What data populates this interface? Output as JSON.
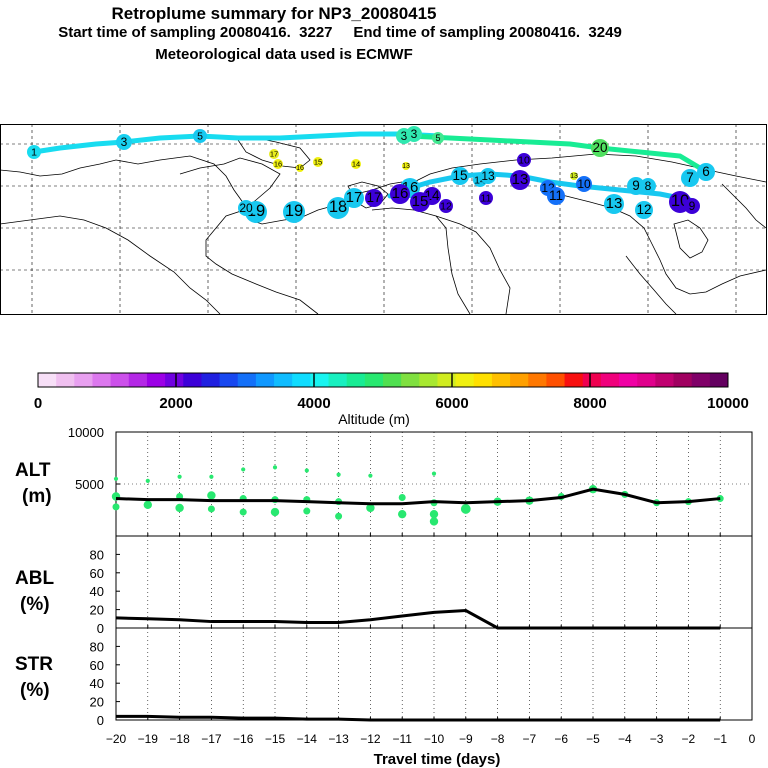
{
  "header": {
    "title": "Retroplume summary for NP3_20080415",
    "subtitle_sampling": "Start time of sampling 20080416.  3227     End time of sampling 20080416.  3249",
    "subtitle_met": "Meteorological data used is ECMWF"
  },
  "colorbar": {
    "label": "Altitude (m)",
    "ticks": [
      "0",
      "2000",
      "4000",
      "6000",
      "8000",
      "10000"
    ],
    "colors": [
      "#f7dff7",
      "#f0c0f0",
      "#e8a0f0",
      "#dc78ee",
      "#cc50ea",
      "#b428e6",
      "#9c00e6",
      "#7000e0",
      "#3c00d8",
      "#2020e0",
      "#1848f0",
      "#1470f8",
      "#1098ff",
      "#10bcff",
      "#10dcff",
      "#18f4f0",
      "#18f0c0",
      "#18ec94",
      "#28e870",
      "#50e050",
      "#80e040",
      "#a8e830",
      "#d0ec20",
      "#f0f010",
      "#ffe000",
      "#ffc000",
      "#ffa000",
      "#ff7800",
      "#ff5000",
      "#f81010",
      "#f00050",
      "#f0007c",
      "#f000a4",
      "#e0008c",
      "#c00070",
      "#a00060",
      "#800068",
      "#640060"
    ]
  },
  "map": {
    "plume_labels": [
      {
        "label": "1",
        "color": "#18dcf0"
      },
      {
        "label": "3",
        "color": "#18d0f0"
      },
      {
        "label": "5",
        "color": "#18c8f0"
      },
      {
        "label": "3",
        "color": "#30e8b0"
      },
      {
        "label": "3",
        "color": "#30e8b0"
      },
      {
        "label": "5",
        "color": "#40e890"
      },
      {
        "label": "20",
        "color": "#50e060"
      },
      {
        "label": "17",
        "color": "#e8ec20"
      },
      {
        "label": "16",
        "color": "#f0f010"
      },
      {
        "label": "16",
        "color": "#f0f010"
      },
      {
        "label": "15",
        "color": "#f0f010"
      },
      {
        "label": "14",
        "color": "#f0f010"
      },
      {
        "label": "13",
        "color": "#f0f010"
      },
      {
        "label": "13",
        "color": "#d0ec20"
      },
      {
        "label": "19",
        "color": "#18c8f0"
      },
      {
        "label": "20",
        "color": "#18c8f0"
      },
      {
        "label": "19",
        "color": "#18c8f0"
      },
      {
        "label": "18",
        "color": "#18c8f0"
      },
      {
        "label": "17",
        "color": "#18c8f0"
      },
      {
        "label": "16",
        "color": "#18c8f0"
      },
      {
        "label": "15",
        "color": "#18c8f0"
      },
      {
        "label": "14",
        "color": "#18c8f0"
      },
      {
        "label": "14",
        "color": "#3c00d8"
      },
      {
        "label": "13",
        "color": "#18c8f0"
      },
      {
        "label": "13",
        "color": "#3c00d8"
      },
      {
        "label": "12",
        "color": "#1470f8"
      },
      {
        "label": "11",
        "color": "#1470f8"
      },
      {
        "label": "10",
        "color": "#1470f8"
      },
      {
        "label": "10",
        "color": "#3c00d8"
      },
      {
        "label": "9",
        "color": "#18c8f0"
      },
      {
        "label": "8",
        "color": "#18c8f0"
      },
      {
        "label": "7",
        "color": "#18c8f0"
      },
      {
        "label": "6",
        "color": "#18c8f0"
      },
      {
        "label": "13",
        "color": "#18c8f0"
      },
      {
        "label": "12",
        "color": "#18c8f0"
      },
      {
        "label": "10",
        "color": "#3c00d8"
      },
      {
        "label": "9",
        "color": "#3c00d8"
      },
      {
        "label": "17",
        "color": "#3c00d8"
      },
      {
        "label": "16",
        "color": "#3c00d8"
      },
      {
        "label": "15",
        "color": "#3c00d8"
      },
      {
        "label": "12",
        "color": "#3c00d8"
      },
      {
        "label": "11",
        "color": "#3c00d8"
      }
    ]
  },
  "panels": {
    "alt": {
      "label_top": "ALT",
      "label_bottom": "(m)"
    },
    "abl": {
      "label_top": "ABL",
      "label_bottom": "(%)"
    },
    "str": {
      "label_top": "STR",
      "label_bottom": "(%)"
    }
  },
  "chart_data": [
    {
      "type": "line",
      "title": "ALT (m)",
      "xlabel": "Travel time (days)",
      "ylabel": "ALT (m)",
      "xlim": [
        -20,
        0
      ],
      "ylim": [
        0,
        10000
      ],
      "x_ticks": [
        -20,
        -19,
        -18,
        -17,
        -16,
        -15,
        -14,
        -13,
        -12,
        -11,
        -10,
        -9,
        -8,
        -7,
        -6,
        -5,
        -4,
        -3,
        -2,
        -1,
        0
      ],
      "y_ticks": [
        5000,
        10000
      ],
      "series": [
        {
          "name": "mean altitude",
          "x": [
            -20,
            -19,
            -18,
            -17,
            -16,
            -15,
            -14,
            -13,
            -12,
            -11,
            -10,
            -9,
            -8,
            -7,
            -6,
            -5,
            -4,
            -3,
            -2,
            -1
          ],
          "values": [
            3600,
            3500,
            3500,
            3400,
            3400,
            3400,
            3300,
            3200,
            3100,
            3100,
            3300,
            3200,
            3300,
            3400,
            3700,
            4500,
            4000,
            3200,
            3300,
            3600
          ]
        },
        {
          "name": "cluster points",
          "points": [
            {
              "x": -20,
              "y": 5500,
              "s": 3
            },
            {
              "x": -20,
              "y": 3800,
              "s": 6
            },
            {
              "x": -20,
              "y": 2800,
              "s": 5
            },
            {
              "x": -19,
              "y": 5300,
              "s": 3
            },
            {
              "x": -19,
              "y": 3000,
              "s": 6
            },
            {
              "x": -18,
              "y": 5700,
              "s": 3
            },
            {
              "x": -18,
              "y": 3800,
              "s": 5
            },
            {
              "x": -18,
              "y": 2700,
              "s": 6
            },
            {
              "x": -17,
              "y": 5700,
              "s": 3
            },
            {
              "x": -17,
              "y": 3900,
              "s": 6
            },
            {
              "x": -17,
              "y": 2600,
              "s": 5
            },
            {
              "x": -16,
              "y": 6400,
              "s": 3
            },
            {
              "x": -16,
              "y": 3600,
              "s": 5
            },
            {
              "x": -16,
              "y": 2300,
              "s": 5
            },
            {
              "x": -15,
              "y": 6600,
              "s": 3
            },
            {
              "x": -15,
              "y": 3500,
              "s": 5
            },
            {
              "x": -15,
              "y": 2300,
              "s": 6
            },
            {
              "x": -14,
              "y": 6300,
              "s": 3
            },
            {
              "x": -14,
              "y": 3500,
              "s": 5
            },
            {
              "x": -14,
              "y": 2400,
              "s": 5
            },
            {
              "x": -13,
              "y": 5900,
              "s": 3
            },
            {
              "x": -13,
              "y": 3300,
              "s": 5
            },
            {
              "x": -13,
              "y": 1900,
              "s": 5
            },
            {
              "x": -12,
              "y": 5800,
              "s": 3
            },
            {
              "x": -12,
              "y": 2700,
              "s": 6
            },
            {
              "x": -11,
              "y": 3700,
              "s": 5
            },
            {
              "x": -11,
              "y": 2100,
              "s": 6
            },
            {
              "x": -10,
              "y": 6000,
              "s": 3
            },
            {
              "x": -10,
              "y": 3200,
              "s": 5
            },
            {
              "x": -10,
              "y": 2100,
              "s": 6
            },
            {
              "x": -10,
              "y": 1400,
              "s": 6
            },
            {
              "x": -9,
              "y": 2600,
              "s": 7
            },
            {
              "x": -8,
              "y": 3300,
              "s": 6
            },
            {
              "x": -7,
              "y": 3400,
              "s": 6
            },
            {
              "x": -6,
              "y": 3800,
              "s": 5
            },
            {
              "x": -5,
              "y": 4500,
              "s": 6
            },
            {
              "x": -4,
              "y": 4000,
              "s": 5
            },
            {
              "x": -3,
              "y": 3200,
              "s": 5
            },
            {
              "x": -2,
              "y": 3300,
              "s": 5
            },
            {
              "x": -1,
              "y": 3600,
              "s": 5
            }
          ]
        }
      ]
    },
    {
      "type": "line",
      "title": "ABL (%)",
      "xlabel": "Travel time (days)",
      "ylabel": "ABL (%)",
      "xlim": [
        -20,
        0
      ],
      "ylim": [
        0,
        100
      ],
      "y_ticks": [
        0,
        20,
        40,
        60,
        80
      ],
      "series": [
        {
          "name": "ABL fraction",
          "x": [
            -20,
            -19,
            -18,
            -17,
            -16,
            -15,
            -14,
            -13,
            -12,
            -11,
            -10,
            -9,
            -8,
            -7,
            -6,
            -5,
            -4,
            -3,
            -2,
            -1
          ],
          "values": [
            11,
            10,
            9,
            7,
            7,
            7,
            6,
            6,
            9,
            13,
            17,
            19,
            0,
            0,
            0,
            0,
            0,
            0,
            0,
            0
          ]
        }
      ]
    },
    {
      "type": "line",
      "title": "STR (%)",
      "xlabel": "Travel time (days)",
      "ylabel": "STR (%)",
      "xlim": [
        -20,
        0
      ],
      "ylim": [
        0,
        100
      ],
      "y_ticks": [
        0,
        20,
        40,
        60,
        80
      ],
      "series": [
        {
          "name": "STR fraction",
          "x": [
            -20,
            -19,
            -18,
            -17,
            -16,
            -15,
            -14,
            -13,
            -12,
            -11,
            -10,
            -9,
            -8,
            -7,
            -6,
            -5,
            -4,
            -3,
            -2,
            -1
          ],
          "values": [
            4,
            4,
            3,
            3,
            2,
            2,
            1,
            1,
            0,
            0,
            0,
            0,
            0,
            0,
            0,
            0,
            0,
            0,
            0,
            0
          ]
        }
      ]
    }
  ]
}
